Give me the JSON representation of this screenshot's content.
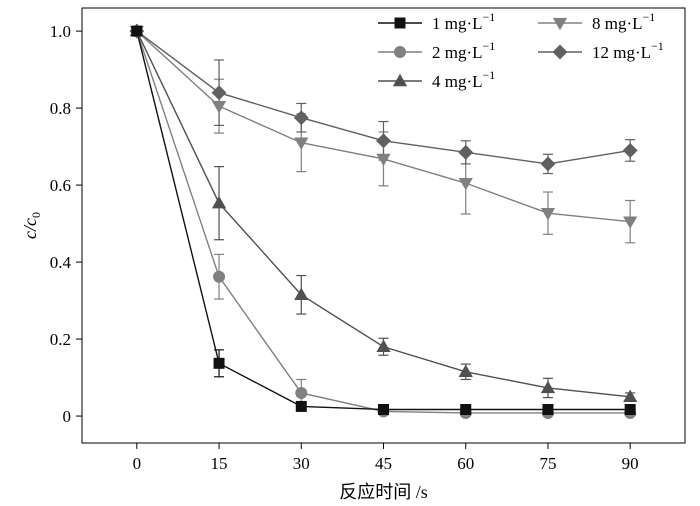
{
  "chart_data": {
    "type": "line",
    "xlabel": "反应时间 /s",
    "ylabel_main": "c/c",
    "ylabel_sub": "0",
    "xlim": [
      -10,
      100
    ],
    "ylim": [
      -0.07,
      1.06
    ],
    "xticks": [
      0,
      15,
      30,
      45,
      60,
      75,
      90
    ],
    "xtick_labels": [
      "0",
      "15",
      "30",
      "45",
      "60",
      "75",
      "90"
    ],
    "yticks": [
      0,
      0.2,
      0.4,
      0.6,
      0.8,
      1.0
    ],
    "ytick_labels": [
      "0",
      "0.2",
      "0.4",
      "0.6",
      "0.8",
      "1.0"
    ],
    "grid": false,
    "legend_position": "top-right",
    "x": [
      0,
      15,
      30,
      45,
      60,
      75,
      90
    ],
    "series": [
      {
        "name": "1 mg·L",
        "name_sup": "−1",
        "marker": "square",
        "color": "#111111",
        "values": [
          1.0,
          0.137,
          0.025,
          0.017,
          0.017,
          0.017,
          0.017
        ],
        "errors": [
          0,
          0.035,
          0.005,
          0.005,
          0.005,
          0.005,
          0.005
        ]
      },
      {
        "name": "2 mg·L",
        "name_sup": "−1",
        "marker": "circle",
        "color": "#808080",
        "values": [
          1.0,
          0.362,
          0.06,
          0.012,
          0.008,
          0.008,
          0.008
        ],
        "errors": [
          0,
          0.058,
          0.035,
          0.005,
          0.005,
          0.005,
          0.005
        ]
      },
      {
        "name": "4 mg·L",
        "name_sup": "−1",
        "marker": "triangle-up",
        "color": "#505050",
        "values": [
          1.0,
          0.553,
          0.315,
          0.18,
          0.115,
          0.073,
          0.05
        ],
        "errors": [
          0,
          0.095,
          0.05,
          0.022,
          0.02,
          0.025,
          0.01
        ]
      },
      {
        "name": "8 mg·L",
        "name_sup": "−1",
        "marker": "triangle-down",
        "color": "#808080",
        "values": [
          1.0,
          0.805,
          0.71,
          0.668,
          0.605,
          0.527,
          0.505
        ],
        "errors": [
          0,
          0.07,
          0.075,
          0.07,
          0.08,
          0.055,
          0.055
        ]
      },
      {
        "name": "12 mg·L",
        "name_sup": "−1",
        "marker": "diamond",
        "color": "#606060",
        "values": [
          1.0,
          0.84,
          0.775,
          0.715,
          0.685,
          0.655,
          0.69
        ],
        "errors": [
          0,
          0.085,
          0.037,
          0.05,
          0.03,
          0.025,
          0.028
        ]
      }
    ]
  }
}
